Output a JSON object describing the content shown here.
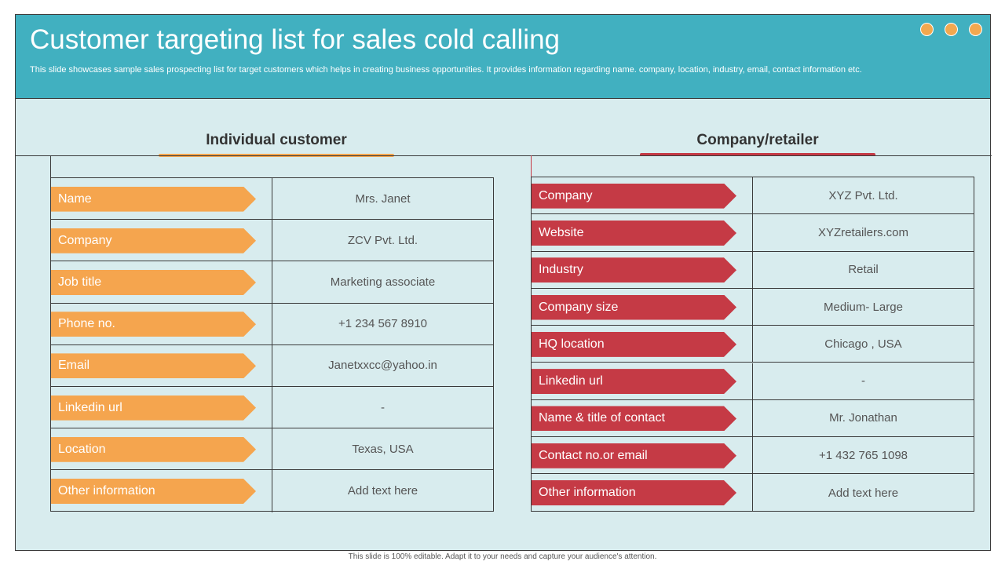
{
  "header": {
    "title": "Customer targeting list for sales cold calling",
    "subtitle": "This slide showcases sample sales prospecting list for target customers which helps in creating business opportunities. It provides information regarding name. company, location, industry, email, contact information etc."
  },
  "individual": {
    "heading": "Individual customer",
    "rows": [
      {
        "label": "Name",
        "value": "Mrs. Janet"
      },
      {
        "label": "Company",
        "value": "ZCV Pvt. Ltd."
      },
      {
        "label": "Job title",
        "value": "Marketing associate"
      },
      {
        "label": "Phone no.",
        "value": "+1 234 567 8910"
      },
      {
        "label": "Email",
        "value": "Janetxxcc@yahoo.in"
      },
      {
        "label": "Linkedin url",
        "value": "-"
      },
      {
        "label": "Location",
        "value": "Texas, USA"
      },
      {
        "label": "Other information",
        "value": "Add text here"
      }
    ]
  },
  "company": {
    "heading": "Company/retailer",
    "rows": [
      {
        "label": "Company",
        "value": "XYZ Pvt. Ltd."
      },
      {
        "label": "Website",
        "value": "XYZretailers.com"
      },
      {
        "label": "Industry",
        "value": "Retail"
      },
      {
        "label": "Company size",
        "value": "Medium- Large"
      },
      {
        "label": "HQ location",
        "value": "Chicago , USA"
      },
      {
        "label": "Linkedin url",
        "value": "-"
      },
      {
        "label": "Name & title of contact",
        "value": "Mr. Jonathan"
      },
      {
        "label": "Contact no.or email",
        "value": "+1 432 765 1098"
      },
      {
        "label": "Other information",
        "value": "Add text here"
      }
    ]
  },
  "footer": {
    "text": "This slide is 100% editable. Adapt it to your needs and capture your audience's attention."
  },
  "colors": {
    "header_bg": "#41b0c0",
    "slide_bg": "#d8ecee",
    "orange": "#f5a54e",
    "red": "#c53a45"
  }
}
